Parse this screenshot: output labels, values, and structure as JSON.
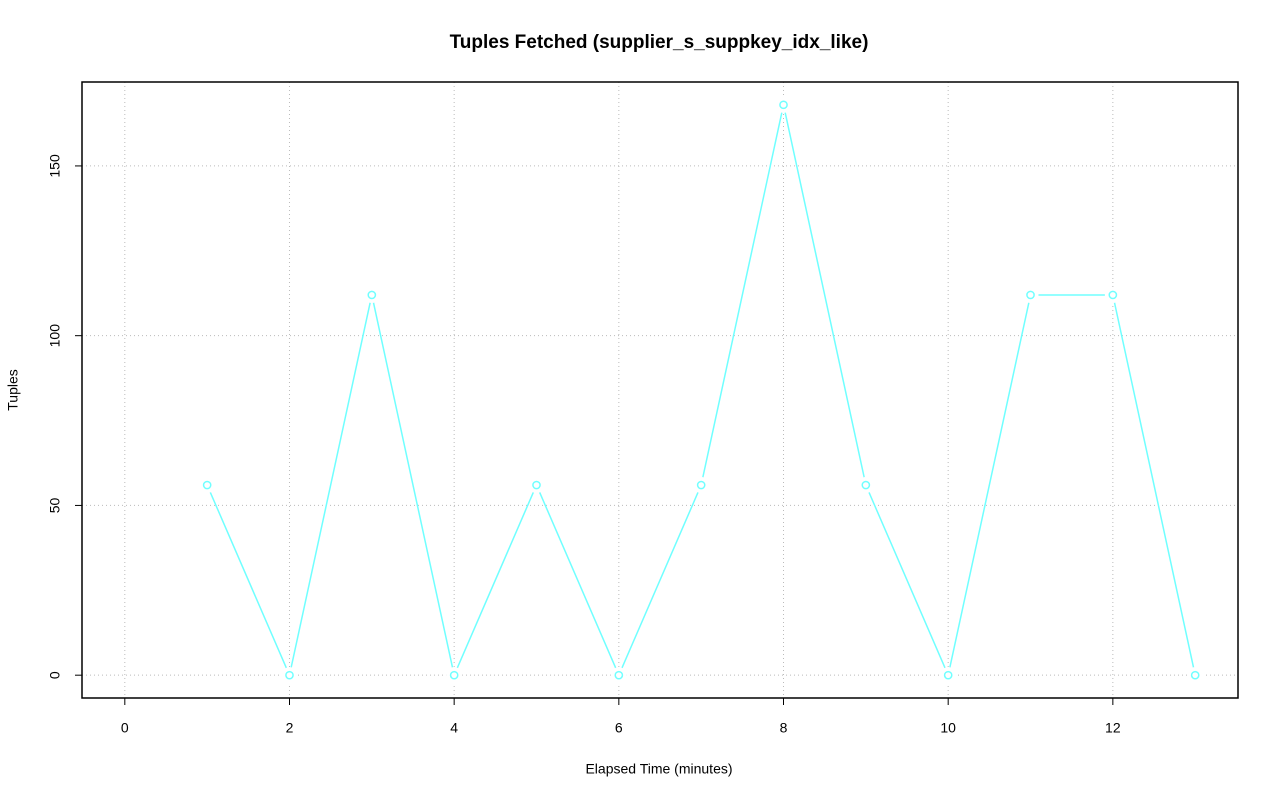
{
  "chart_data": {
    "type": "line",
    "title": "Tuples Fetched (supplier_s_suppkey_idx_like)",
    "x_label": "Elapsed Time (minutes)",
    "y_label": "Tuples",
    "x": [
      1,
      2,
      3,
      4,
      5,
      6,
      7,
      8,
      9,
      10,
      11,
      12,
      13
    ],
    "values": [
      56,
      0,
      112,
      0,
      56,
      0,
      56,
      168,
      56,
      0,
      112,
      112,
      0
    ],
    "color": "#70ffff",
    "xlim": [
      -0.52,
      13.52
    ],
    "xticks": [
      0,
      2,
      4,
      6,
      8,
      10,
      12
    ],
    "ylim": [
      -6.72,
      174.72
    ],
    "yticks": [
      0,
      50,
      100,
      150
    ],
    "grid": true
  }
}
